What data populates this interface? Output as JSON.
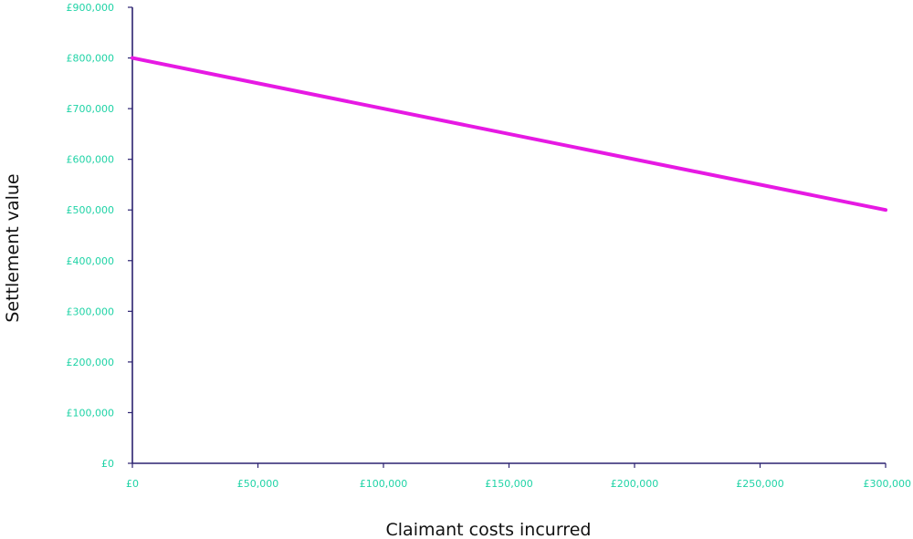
{
  "chart_data": {
    "type": "line",
    "title": "",
    "xlabel": "Claimant costs incurred",
    "ylabel": "Settlement value",
    "xlim": [
      0,
      300000
    ],
    "ylim": [
      0,
      900000
    ],
    "x_ticks": [
      0,
      50000,
      100000,
      150000,
      200000,
      250000,
      300000
    ],
    "y_ticks": [
      0,
      100000,
      200000,
      300000,
      400000,
      500000,
      600000,
      700000,
      800000,
      900000
    ],
    "x_tick_labels": [
      "£0",
      "£50,000",
      "£100,000",
      "£150,000",
      "£200,000",
      "£250,000",
      "£300,000"
    ],
    "y_tick_labels": [
      "£0",
      "£100,000",
      "£200,000",
      "£300,000",
      "£400,000",
      "£500,000",
      "£600,000",
      "£700,000",
      "£800,000",
      "£900,000"
    ],
    "grid": false,
    "series": [
      {
        "x": [
          0,
          300000
        ],
        "values": [
          800000,
          500000
        ],
        "color": "#e619e3"
      }
    ],
    "colors": {
      "axis": "#2b2270",
      "tick_label": "#1fd3a6",
      "axis_title": "#111111"
    }
  }
}
